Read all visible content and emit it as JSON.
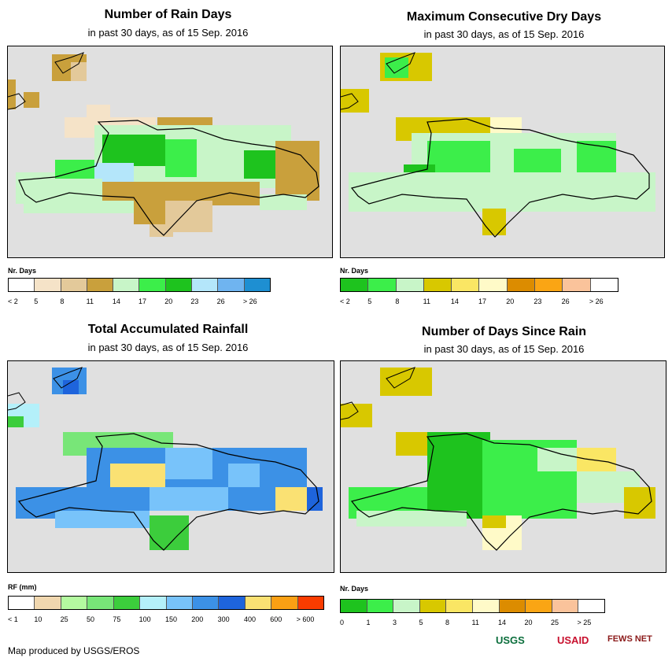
{
  "panels": [
    {
      "id": "rain-days",
      "title": "Number of Rain Days",
      "subtitle": "in past 30 days, as of 15 Sep. 2016",
      "legend": {
        "title": "Nr. Days",
        "colors": [
          "#ffffff",
          "#f5e3c8",
          "#e3c99a",
          "#c9a03c",
          "#c8f5c8",
          "#3cee4a",
          "#1ec31e",
          "#b4e6fa",
          "#6fb4f0",
          "#1e8fd2"
        ],
        "labels": [
          "< 2",
          "5",
          "8",
          "11",
          "14",
          "17",
          "20",
          "23",
          "26",
          "> 26"
        ]
      }
    },
    {
      "id": "max-dry-days",
      "title": "Maximum Consecutive Dry Days",
      "subtitle": "in past 30 days, as of 15 Sep. 2016",
      "legend": {
        "title": "Nr. Days",
        "colors": [
          "#1ec31e",
          "#3cee4a",
          "#c8f5c8",
          "#d8c800",
          "#fae664",
          "#fffac8",
          "#dc8c00",
          "#faa514",
          "#fac39b",
          "#ffffff"
        ],
        "labels": [
          "< 2",
          "5",
          "8",
          "11",
          "14",
          "17",
          "20",
          "23",
          "26",
          "> 26"
        ]
      }
    },
    {
      "id": "total-rainfall",
      "title": "Total Accumulated Rainfall",
      "subtitle": "in past 30 days, as of 15 Sep. 2016",
      "legend": {
        "title": "RF (mm)",
        "colors": [
          "#ffffff",
          "#f0d7af",
          "#b4faa0",
          "#78e678",
          "#3ccd3c",
          "#b4f0fa",
          "#78c3fa",
          "#3c91e6",
          "#1e64dc",
          "#fae173",
          "#faa014",
          "#fa3c00"
        ],
        "labels": [
          "< 1",
          "10",
          "25",
          "50",
          "75",
          "100",
          "150",
          "200",
          "300",
          "400",
          "600",
          "> 600"
        ]
      }
    },
    {
      "id": "days-since-rain",
      "title": "Number of Days Since Rain",
      "subtitle": "in past 30 days, as of 15 Sep. 2016",
      "legend": {
        "title": "Nr. Days",
        "colors": [
          "#1ec31e",
          "#3cee4a",
          "#c8f5c8",
          "#d8c800",
          "#fae664",
          "#fffac8",
          "#dc8c00",
          "#faa514",
          "#fac39b",
          "#ffffff"
        ],
        "labels": [
          "0",
          "1",
          "3",
          "5",
          "8",
          "11",
          "14",
          "20",
          "25",
          "> 25"
        ]
      }
    }
  ],
  "footer": {
    "credit": "Map produced by USGS/EROS"
  },
  "logos": {
    "usgs": "USGS",
    "usaid": "USAID",
    "fewsnet": "FEWS NET"
  }
}
